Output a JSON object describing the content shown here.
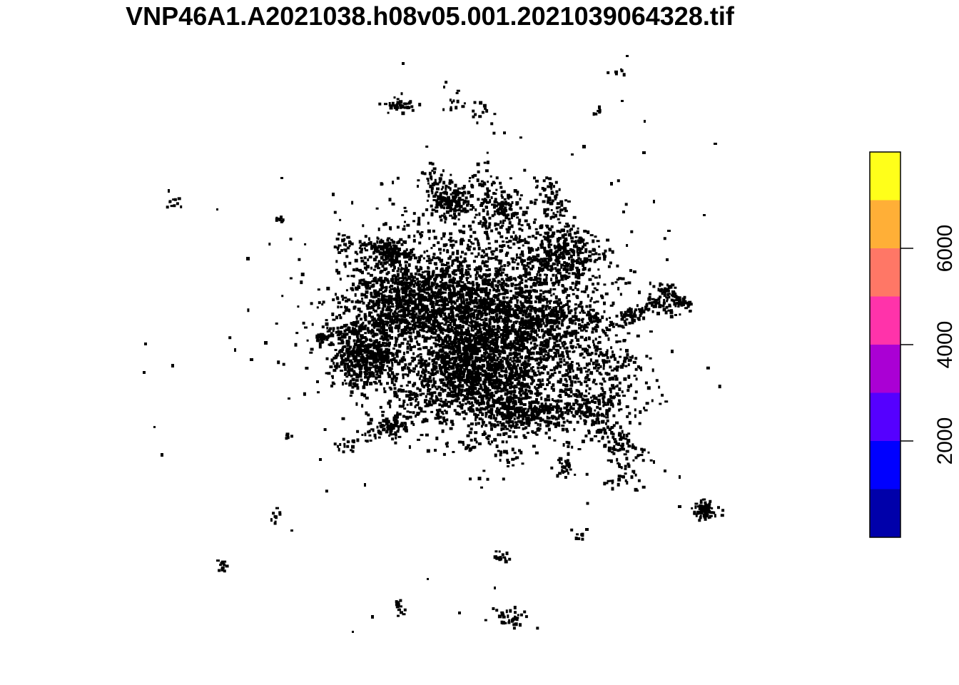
{
  "chart_data": {
    "type": "heatmap",
    "title": "VNP46A1.A2021038.h08v05.001.2021039064328.tif",
    "xlabel": "",
    "ylabel": "",
    "value_range": [
      0,
      8000
    ],
    "legend": {
      "placement": "right",
      "breaks": [
        0,
        1000,
        2000,
        3000,
        4000,
        5000,
        6000,
        7000,
        8000
      ],
      "colors": [
        "#0000AA",
        "#0000FF",
        "#5500FF",
        "#AA00D4",
        "#FF33AA",
        "#FF7766",
        "#FFAF37",
        "#FFFF1A"
      ],
      "tick_values": [
        "2000",
        "4000",
        "6000"
      ]
    },
    "raster_note": "Sparse radiance pixels of a metropolitan area; nearly all visible pixels fall in the lowest class.",
    "pixel_color": "#000000"
  }
}
